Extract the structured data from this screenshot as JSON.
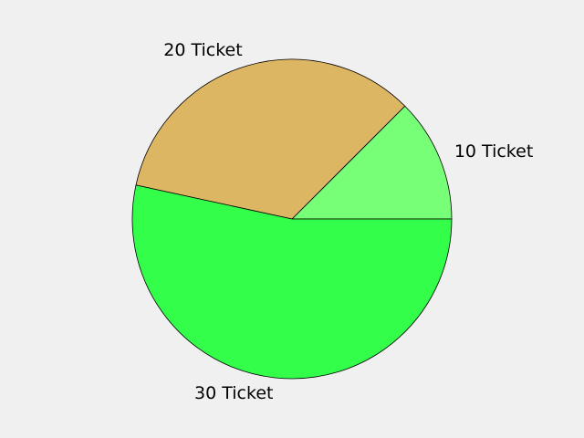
{
  "chart_data": {
    "type": "pie",
    "title": "",
    "start_angle_deg": 0,
    "direction": "counterclockwise",
    "slices": [
      {
        "label": "10 Ticket",
        "value": 12.5,
        "color": "#77ff77"
      },
      {
        "label": "20 Ticket",
        "value": 34.1,
        "color": "#ddb663"
      },
      {
        "label": "30 Ticket",
        "value": 53.4,
        "color": "#33ff4a"
      }
    ]
  }
}
